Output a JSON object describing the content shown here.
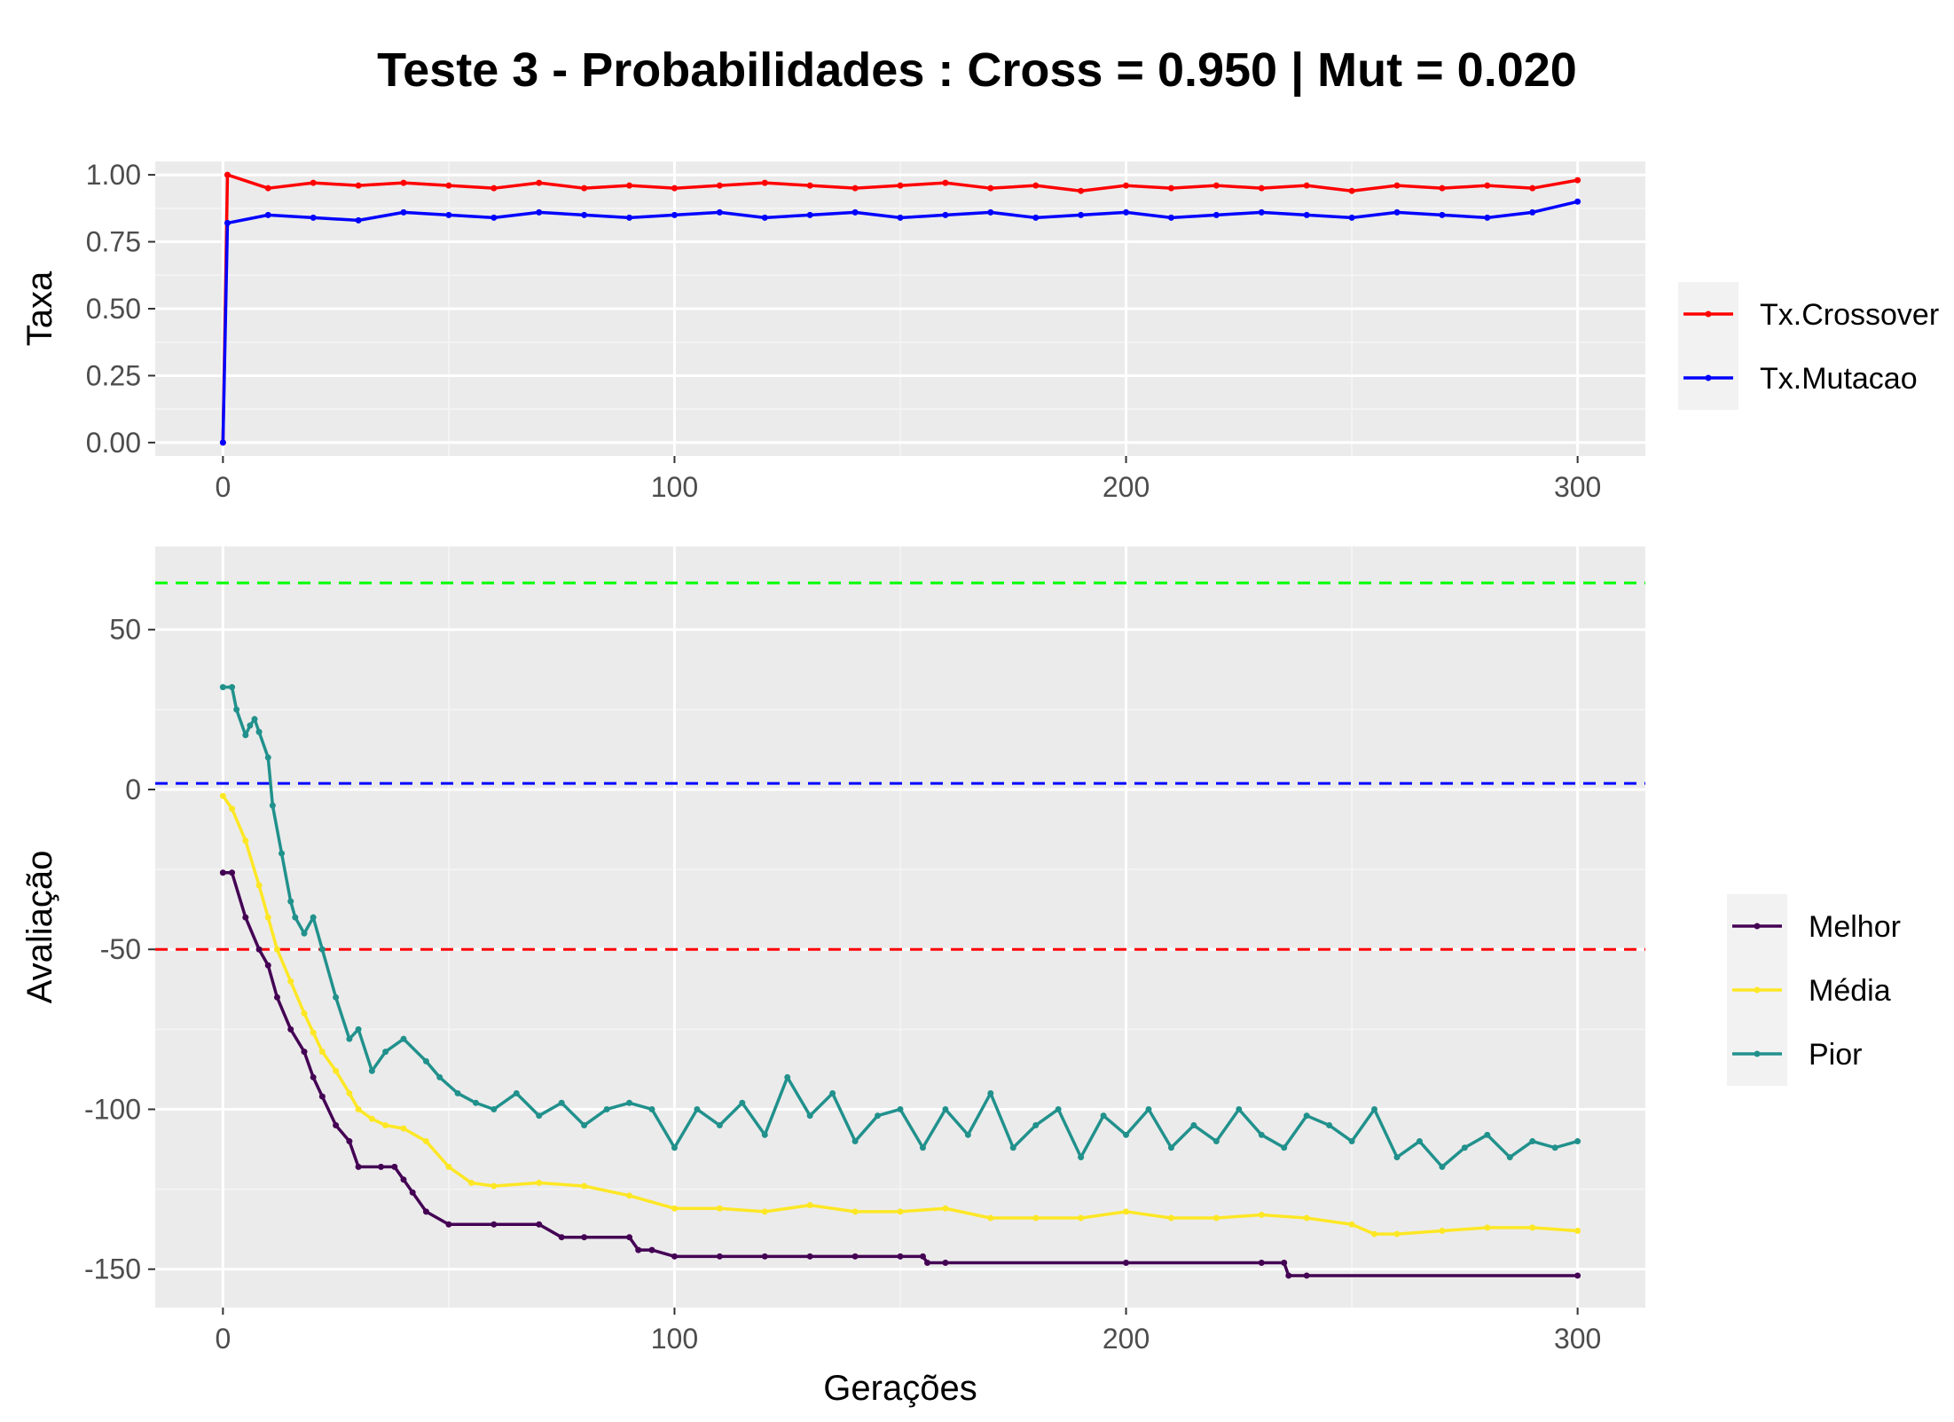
{
  "title": "Teste 3 - Probabilidades : Cross = 0.950 | Mut = 0.020",
  "chart_data": [
    {
      "type": "line",
      "ylabel": "Taxa",
      "xlabel": "",
      "xlim": [
        -15,
        315
      ],
      "ylim": [
        -0.05,
        1.05
      ],
      "x_ticks": [
        0,
        100,
        200,
        300
      ],
      "x_tick_labels": [
        "0",
        "100",
        "200",
        "300"
      ],
      "y_ticks": [
        0,
        0.25,
        0.5,
        0.75,
        1.0
      ],
      "y_tick_labels": [
        "0.00",
        "0.25",
        "0.50",
        "0.75",
        "1.00"
      ],
      "legend_position": "right",
      "series": [
        {
          "name": "Tx.Crossover",
          "color": "#ff0000",
          "x": [
            0,
            1,
            10,
            20,
            30,
            40,
            50,
            60,
            70,
            80,
            90,
            100,
            110,
            120,
            130,
            140,
            150,
            160,
            170,
            180,
            190,
            200,
            210,
            220,
            230,
            240,
            250,
            260,
            270,
            280,
            290,
            300
          ],
          "values": [
            0.0,
            1.0,
            0.95,
            0.97,
            0.96,
            0.97,
            0.96,
            0.95,
            0.97,
            0.95,
            0.96,
            0.95,
            0.96,
            0.97,
            0.96,
            0.95,
            0.96,
            0.97,
            0.95,
            0.96,
            0.94,
            0.96,
            0.95,
            0.96,
            0.95,
            0.96,
            0.94,
            0.96,
            0.95,
            0.96,
            0.95,
            0.98
          ]
        },
        {
          "name": "Tx.Mutacao",
          "color": "#0000ff",
          "x": [
            0,
            1,
            10,
            20,
            30,
            40,
            50,
            60,
            70,
            80,
            90,
            100,
            110,
            120,
            130,
            140,
            150,
            160,
            170,
            180,
            190,
            200,
            210,
            220,
            230,
            240,
            250,
            260,
            270,
            280,
            290,
            300
          ],
          "values": [
            0.0,
            0.82,
            0.85,
            0.84,
            0.83,
            0.86,
            0.85,
            0.84,
            0.86,
            0.85,
            0.84,
            0.85,
            0.86,
            0.84,
            0.85,
            0.86,
            0.84,
            0.85,
            0.86,
            0.84,
            0.85,
            0.86,
            0.84,
            0.85,
            0.86,
            0.85,
            0.84,
            0.86,
            0.85,
            0.84,
            0.86,
            0.9
          ]
        }
      ]
    },
    {
      "type": "line",
      "ylabel": "Avaliação",
      "xlabel": "Gerações",
      "xlim": [
        -15,
        315
      ],
      "ylim": [
        -162,
        76
      ],
      "x_ticks": [
        0,
        100,
        200,
        300
      ],
      "x_tick_labels": [
        "0",
        "100",
        "200",
        "300"
      ],
      "y_ticks": [
        -150,
        -100,
        -50,
        0,
        50
      ],
      "y_tick_labels": [
        "-150",
        "-100",
        "-50",
        "0",
        "50"
      ],
      "legend_position": "right",
      "hlines": [
        {
          "y": 64.6,
          "color": "#00ff00"
        },
        {
          "y": 1.9,
          "color": "#0000ff"
        },
        {
          "y": -50,
          "color": "#ff0000"
        }
      ],
      "series": [
        {
          "name": "Melhor",
          "color": "#440154",
          "x": [
            0,
            2,
            5,
            8,
            10,
            12,
            15,
            18,
            20,
            22,
            25,
            28,
            30,
            35,
            38,
            40,
            42,
            45,
            50,
            60,
            70,
            75,
            80,
            90,
            92,
            95,
            100,
            110,
            120,
            130,
            140,
            150,
            155,
            156,
            160,
            200,
            230,
            235,
            236,
            240,
            300
          ],
          "values": [
            -26,
            -26,
            -40,
            -50,
            -55,
            -65,
            -75,
            -82,
            -90,
            -96,
            -105,
            -110,
            -118,
            -118,
            -118,
            -122,
            -126,
            -132,
            -136,
            -136,
            -136,
            -140,
            -140,
            -140,
            -144,
            -144,
            -146,
            -146,
            -146,
            -146,
            -146,
            -146,
            -146,
            -148,
            -148,
            -148,
            -148,
            -148,
            -152,
            -152,
            -152
          ]
        },
        {
          "name": "Média",
          "color": "#fde725",
          "x": [
            0,
            2,
            5,
            8,
            10,
            12,
            15,
            18,
            20,
            22,
            25,
            28,
            30,
            33,
            36,
            40,
            45,
            50,
            55,
            60,
            70,
            80,
            90,
            100,
            110,
            120,
            130,
            140,
            150,
            160,
            170,
            180,
            190,
            200,
            210,
            220,
            230,
            240,
            250,
            255,
            260,
            270,
            280,
            290,
            300
          ],
          "values": [
            -2,
            -6,
            -16,
            -30,
            -40,
            -50,
            -60,
            -70,
            -76,
            -82,
            -88,
            -95,
            -100,
            -103,
            -105,
            -106,
            -110,
            -118,
            -123,
            -124,
            -123,
            -124,
            -127,
            -131,
            -131,
            -132,
            -130,
            -132,
            -132,
            -131,
            -134,
            -134,
            -134,
            -132,
            -134,
            -134,
            -133,
            -134,
            -136,
            -139,
            -139,
            -138,
            -137,
            -137,
            -138
          ]
        },
        {
          "name": "Pior",
          "color": "#21918c",
          "x": [
            0,
            2,
            3,
            5,
            6,
            7,
            8,
            10,
            11,
            13,
            15,
            16,
            18,
            20,
            22,
            25,
            28,
            30,
            33,
            36,
            40,
            45,
            48,
            52,
            56,
            60,
            65,
            70,
            75,
            80,
            85,
            90,
            95,
            100,
            105,
            110,
            115,
            120,
            125,
            130,
            135,
            140,
            145,
            150,
            155,
            160,
            165,
            170,
            175,
            180,
            185,
            190,
            195,
            200,
            205,
            210,
            215,
            220,
            225,
            230,
            235,
            240,
            245,
            250,
            255,
            260,
            265,
            270,
            275,
            280,
            285,
            290,
            295,
            300
          ],
          "values": [
            32,
            32,
            25,
            17,
            20,
            22,
            18,
            10,
            -5,
            -20,
            -35,
            -40,
            -45,
            -40,
            -50,
            -65,
            -78,
            -75,
            -88,
            -82,
            -78,
            -85,
            -90,
            -95,
            -98,
            -100,
            -95,
            -102,
            -98,
            -105,
            -100,
            -98,
            -100,
            -112,
            -100,
            -105,
            -98,
            -108,
            -90,
            -102,
            -95,
            -110,
            -102,
            -100,
            -112,
            -100,
            -108,
            -95,
            -112,
            -105,
            -100,
            -115,
            -102,
            -108,
            -100,
            -112,
            -105,
            -110,
            -100,
            -108,
            -112,
            -102,
            -105,
            -110,
            -100,
            -115,
            -110,
            -118,
            -112,
            -108,
            -115,
            -110,
            -112,
            -110
          ]
        }
      ]
    }
  ]
}
